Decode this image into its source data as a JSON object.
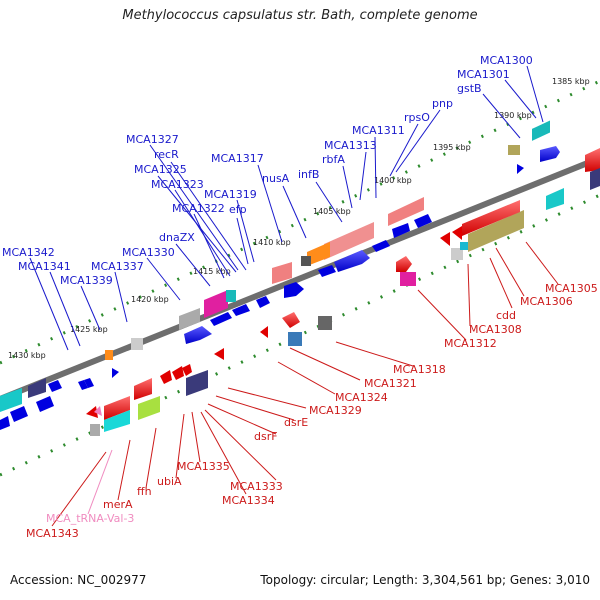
{
  "title": "Methylococcus capsulatus str. Bath, complete genome",
  "footer": {
    "accession": "Accession: NC_002977",
    "summary": "Topology: circular; Length: 3,304,561 bp; Genes: 3,010"
  },
  "colors": {
    "upper_labels": "#1a1acc",
    "lower_labels": "#cc1a1a",
    "trna_label": "#f08cc0",
    "backbone": "#777777",
    "tick": "#2e8b2e"
  },
  "ruler_ticks": [
    "1385 kbp",
    "1390 kbp",
    "1395 kbp",
    "1400 kbp",
    "1405 kbp",
    "1410 kbp",
    "1415 kbp",
    "1420 kbp",
    "1425 kbp",
    "1430 kbp"
  ],
  "upper_gene_labels": [
    "MCA1300",
    "MCA1301",
    "gstB",
    "pnp",
    "rpsO",
    "MCA1311",
    "MCA1313",
    "rbfA",
    "infB",
    "nusA",
    "MCA1317",
    "MCA1327",
    "recR",
    "MCA1325",
    "MCA1323",
    "MCA1319",
    "MCA1322",
    "efp",
    "dnaZX",
    "MCA1330",
    "MCA1342",
    "MCA1341",
    "MCA1337",
    "MCA1339"
  ],
  "lower_gene_labels": [
    "MCA1305",
    "MCA1306",
    "cdd",
    "MCA1308",
    "MCA1312",
    "MCA1318",
    "MCA1321",
    "MCA1324",
    "MCA1329",
    "dsrE",
    "dsrF",
    "MCA1333",
    "MCA1334",
    "MCA1335",
    "ubiA",
    "ffh",
    "merA",
    "MCA1343"
  ],
  "trna_labels": [
    "MCA_tRNA-Val-3"
  ]
}
